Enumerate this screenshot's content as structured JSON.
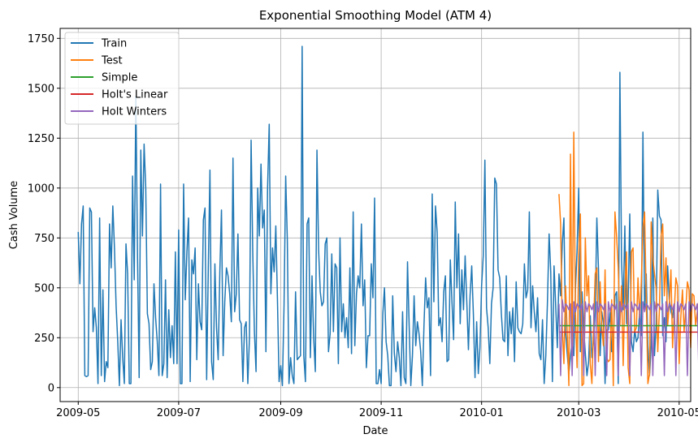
{
  "chart_data": {
    "type": "line",
    "title": "Exponential Smoothing Model (ATM 4)",
    "xlabel": "Date",
    "ylabel": "Cash Volume",
    "x_range": [
      "2009-04-20",
      "2010-05-08"
    ],
    "ylim": [
      -70,
      1800
    ],
    "grid": true,
    "legend_position": "top-left",
    "x_ticks": [
      {
        "date": "2009-05-01",
        "label": "2009-05"
      },
      {
        "date": "2009-07-01",
        "label": "2009-07"
      },
      {
        "date": "2009-09-01",
        "label": "2009-09"
      },
      {
        "date": "2009-11-01",
        "label": "2009-11"
      },
      {
        "date": "2010-01-01",
        "label": "2010-01"
      },
      {
        "date": "2010-03-01",
        "label": "2010-03"
      },
      {
        "date": "2010-05-01",
        "label": "2010-05"
      }
    ],
    "y_ticks": [
      0,
      250,
      500,
      750,
      1000,
      1250,
      1500,
      1750
    ],
    "series": [
      {
        "name": "Train",
        "color": "#1f77b4",
        "start": "2009-05-01",
        "step_days": 1,
        "values": [
          780,
          520,
          820,
          910,
          60,
          55,
          60,
          900,
          880,
          280,
          400,
          300,
          20,
          850,
          60,
          490,
          30,
          130,
          100,
          820,
          600,
          910,
          700,
          410,
          230,
          10,
          340,
          150,
          20,
          720,
          570,
          20,
          20,
          1060,
          540,
          1460,
          660,
          50,
          1190,
          760,
          1220,
          1000,
          370,
          320,
          90,
          130,
          520,
          350,
          230,
          60,
          1020,
          60,
          120,
          540,
          50,
          390,
          150,
          310,
          120,
          680,
          120,
          790,
          20,
          20,
          1020,
          440,
          680,
          850,
          30,
          640,
          570,
          700,
          140,
          520,
          330,
          290,
          840,
          900,
          40,
          600,
          1090,
          130,
          40,
          620,
          300,
          140,
          580,
          890,
          160,
          430,
          600,
          560,
          470,
          330,
          1150,
          380,
          470,
          770,
          340,
          320,
          30,
          300,
          330,
          20,
          250,
          1240,
          680,
          280,
          80,
          1000,
          760,
          1120,
          800,
          890,
          180,
          1000,
          1320,
          470,
          700,
          580,
          810,
          440,
          30,
          110,
          10,
          410,
          1060,
          740,
          20,
          150,
          60,
          20,
          480,
          140,
          150,
          160,
          1710,
          160,
          30,
          820,
          850,
          150,
          560,
          250,
          80,
          1190,
          690,
          480,
          410,
          430,
          720,
          750,
          180,
          270,
          670,
          280,
          620,
          600,
          120,
          750,
          280,
          420,
          250,
          350,
          200,
          600,
          170,
          880,
          210,
          470,
          560,
          500,
          820,
          410,
          540,
          100,
          260,
          260,
          620,
          450,
          950,
          20,
          20,
          90,
          20,
          370,
          500,
          230,
          160,
          10,
          10,
          460,
          170,
          80,
          230,
          150,
          10,
          380,
          50,
          20,
          630,
          310,
          10,
          160,
          460,
          210,
          330,
          270,
          180,
          10,
          310,
          550,
          400,
          450,
          60,
          970,
          430,
          910,
          780,
          310,
          350,
          230,
          480,
          560,
          130,
          140,
          640,
          430,
          240,
          930,
          500,
          770,
          320,
          590,
          390,
          660,
          430,
          190,
          460,
          610,
          370,
          50,
          330,
          70,
          200,
          510,
          660,
          1140,
          400,
          300,
          120,
          420,
          500,
          1050,
          1020,
          590,
          550,
          370,
          240,
          230,
          560,
          160,
          380,
          270,
          400,
          130,
          530,
          300,
          280,
          270,
          320,
          620,
          450,
          490,
          880,
          300,
          510,
          380,
          280,
          450,
          170,
          140,
          340,
          20,
          160,
          430,
          770,
          580,
          30,
          610,
          410,
          200,
          570,
          460,
          720,
          850,
          280,
          170,
          70,
          160,
          230,
          160,
          490,
          690,
          1000,
          180,
          480,
          300,
          170,
          60,
          130,
          360,
          150,
          230,
          380,
          850,
          590,
          160,
          380,
          320,
          20,
          290,
          290,
          380,
          180,
          240,
          460,
          480,
          20,
          1580,
          640,
          390,
          810,
          320,
          430,
          870,
          230,
          180,
          290,
          230,
          250,
          380,
          260,
          1280,
          390,
          570,
          210,
          60,
          210,
          850,
          160,
          310,
          990,
          860,
          840,
          260,
          350,
          230,
          610,
          440,
          380,
          350,
          420
        ]
      },
      {
        "name": "Test",
        "color": "#ff7f0e",
        "start": "2010-02-17",
        "step_days": 1,
        "values": [
          970,
          820,
          300,
          120,
          510,
          280,
          10,
          1170,
          180,
          1280,
          370,
          100,
          670,
          870,
          10,
          20,
          750,
          460,
          560,
          120,
          20,
          310,
          570,
          600,
          130,
          530,
          300,
          210,
          590,
          150,
          130,
          140,
          440,
          10,
          880,
          760,
          600,
          310,
          510,
          110,
          490,
          680,
          100,
          20,
          680,
          700,
          280,
          300,
          550,
          350,
          530,
          800,
          880,
          450,
          20,
          70,
          830,
          650,
          570,
          500,
          180,
          390,
          760,
          820,
          460,
          650,
          310,
          420,
          590,
          200,
          380,
          550,
          510,
          120,
          350,
          490,
          280,
          390,
          530,
          490,
          200,
          470,
          460,
          310,
          380,
          440,
          380,
          420,
          200,
          20,
          480
        ]
      },
      {
        "name": "Simple",
        "color": "#2ca02c",
        "start": "2010-02-17",
        "step_days": 1,
        "values": [
          310,
          310,
          310,
          310,
          310,
          310,
          310,
          310,
          310,
          310,
          310,
          310,
          310,
          310,
          310,
          310,
          310,
          310,
          310,
          310,
          310,
          310,
          310,
          310,
          310,
          310,
          310,
          310,
          310,
          310,
          310,
          310,
          310,
          310,
          310,
          310,
          310,
          310,
          310,
          310,
          310,
          310,
          310,
          310,
          310,
          310,
          310,
          310,
          310,
          310,
          310,
          310,
          310,
          310,
          310,
          310,
          310,
          310,
          310,
          310,
          310,
          310,
          310,
          310,
          310,
          310,
          310,
          310,
          310,
          310,
          310,
          310,
          310,
          310,
          310,
          310,
          310,
          310,
          310,
          310,
          310,
          310,
          310,
          310,
          310,
          310,
          310,
          310,
          310,
          310,
          310
        ]
      },
      {
        "name": "Holt's Linear",
        "color": "#d62728",
        "start": "2010-02-17",
        "step_days": 1,
        "values": [
          278,
          278,
          278,
          278,
          278,
          278,
          278,
          278,
          278,
          278,
          278,
          278,
          278,
          278,
          278,
          278,
          278,
          278,
          278,
          278,
          278,
          278,
          278,
          278,
          278,
          278,
          278,
          278,
          278,
          278,
          278,
          278,
          278,
          278,
          278,
          278,
          278,
          278,
          278,
          278,
          278,
          278,
          278,
          278,
          278,
          278,
          278,
          278,
          278,
          278,
          278,
          278,
          278,
          278,
          278,
          278,
          278,
          278,
          278,
          278,
          278,
          278,
          278,
          278,
          278,
          278,
          278,
          278,
          278,
          278,
          278,
          278,
          278,
          278,
          278,
          278,
          278,
          278,
          278,
          278,
          278,
          278,
          278,
          278,
          278,
          278,
          278,
          278,
          278,
          278,
          278
        ]
      },
      {
        "name": "Holt Winters",
        "color": "#9467bd",
        "start": "2010-02-17",
        "step_days": 1,
        "values": [
          420,
          60,
          440,
          380,
          420,
          410,
          390,
          420,
          60,
          430,
          380,
          420,
          410,
          390,
          420,
          60,
          430,
          380,
          420,
          410,
          390,
          420,
          60,
          430,
          380,
          420,
          410,
          390,
          420,
          60,
          430,
          380,
          420,
          410,
          390,
          420,
          60,
          430,
          380,
          420,
          410,
          390,
          420,
          60,
          430,
          380,
          420,
          410,
          390,
          420,
          60,
          430,
          380,
          420,
          410,
          390,
          420,
          60,
          430,
          380,
          420,
          410,
          390,
          420,
          60,
          430,
          380,
          420,
          410,
          390,
          420,
          60,
          430,
          380,
          420,
          410,
          390,
          420,
          60,
          430,
          380,
          420,
          410,
          390,
          420,
          60,
          430,
          380,
          420,
          410,
          390
        ]
      }
    ]
  }
}
